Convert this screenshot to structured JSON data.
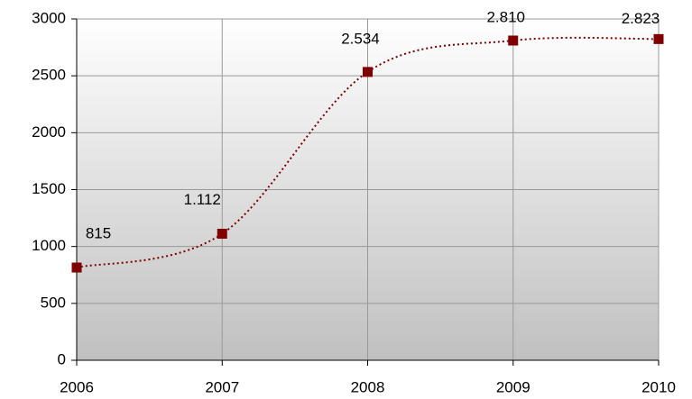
{
  "chart_data": {
    "type": "line",
    "x": [
      2006,
      2007,
      2008,
      2009,
      2010
    ],
    "series": [
      {
        "color": "#800000",
        "values": [
          815,
          1112,
          2534,
          2810,
          2823
        ],
        "value_labels": [
          "815",
          "1.112",
          "2.534",
          "2.810",
          "2.823"
        ]
      }
    ],
    "xlim": [
      2006,
      2010
    ],
    "xticks": [
      2006,
      2007,
      2008,
      2009,
      2010
    ],
    "ylim": [
      0,
      3000
    ],
    "yticks": [
      0,
      500,
      1000,
      1500,
      2000,
      2500,
      3000
    ],
    "grid": true
  }
}
